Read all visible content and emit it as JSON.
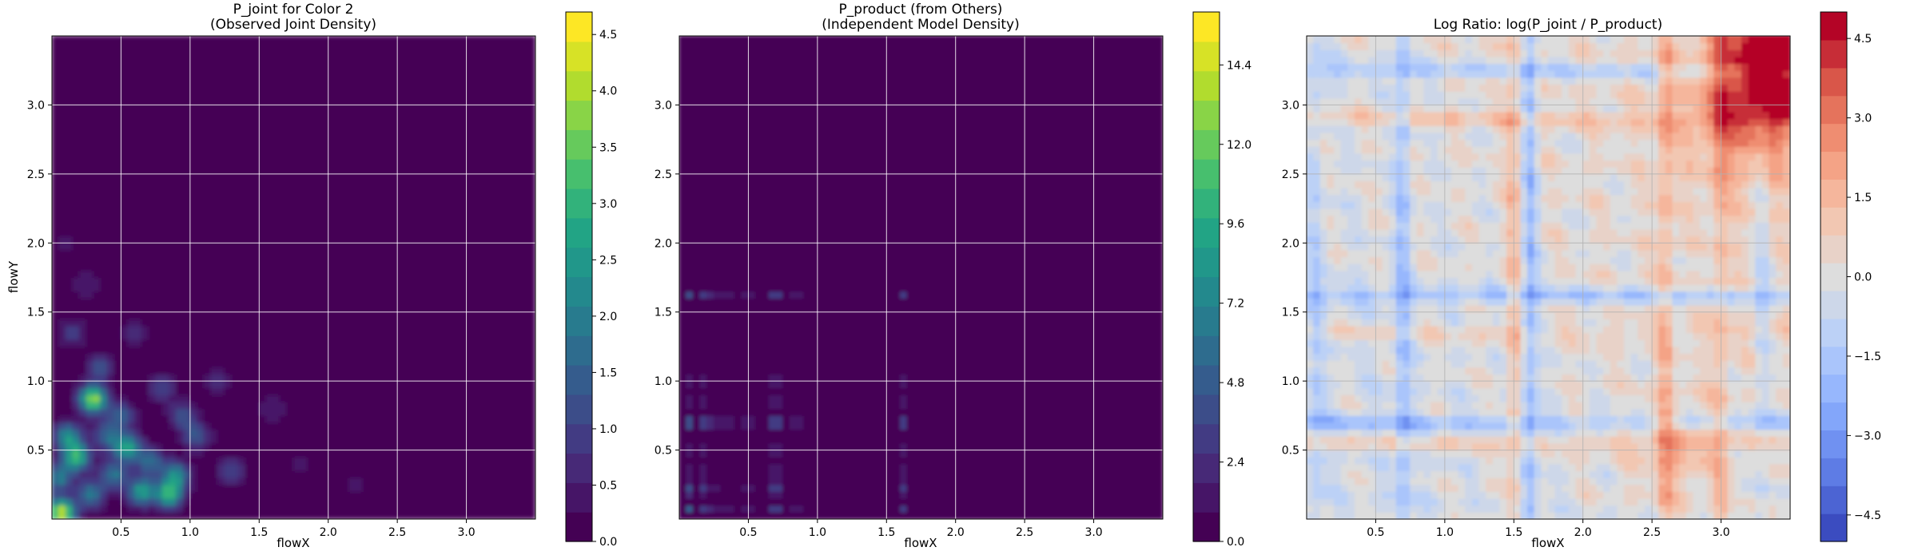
{
  "chart_data": [
    {
      "type": "heatmap",
      "title": "P_joint for Color 2",
      "subtitle": "(Observed Joint Density)",
      "xlabel": "flowX",
      "ylabel": "flowY",
      "xlim": [
        0.0,
        3.5
      ],
      "ylim": [
        0.0,
        3.5
      ],
      "xticks": [
        "0.5",
        "1.0",
        "1.5",
        "2.0",
        "2.5",
        "3.0"
      ],
      "yticks": [
        "0.5",
        "1.0",
        "1.5",
        "2.0",
        "2.5",
        "3.0"
      ],
      "grid": true,
      "colormap": "viridis",
      "colorbar": {
        "range": [
          0.0,
          4.7
        ],
        "ticks": [
          "0.0",
          "0.5",
          "1.0",
          "1.5",
          "2.0",
          "2.5",
          "3.0",
          "3.5",
          "4.0",
          "4.5"
        ]
      },
      "hotspots": [
        {
          "x": 0.07,
          "y": 0.05,
          "value": 4.3
        },
        {
          "x": 0.3,
          "y": 0.87,
          "value": 3.9
        },
        {
          "x": 0.18,
          "y": 0.45,
          "value": 3.0
        },
        {
          "x": 0.12,
          "y": 0.6,
          "value": 2.4
        },
        {
          "x": 0.55,
          "y": 0.52,
          "value": 2.8
        },
        {
          "x": 0.65,
          "y": 0.2,
          "value": 2.6
        },
        {
          "x": 0.85,
          "y": 0.18,
          "value": 3.0
        },
        {
          "x": 0.9,
          "y": 0.32,
          "value": 2.2
        },
        {
          "x": 0.45,
          "y": 0.32,
          "value": 1.9
        },
        {
          "x": 0.72,
          "y": 0.42,
          "value": 1.7
        },
        {
          "x": 0.28,
          "y": 0.18,
          "value": 2.0
        },
        {
          "x": 1.05,
          "y": 0.6,
          "value": 1.4
        },
        {
          "x": 0.35,
          "y": 1.1,
          "value": 1.2
        },
        {
          "x": 0.8,
          "y": 0.95,
          "value": 1.0
        },
        {
          "x": 1.3,
          "y": 0.35,
          "value": 1.0
        },
        {
          "x": 0.15,
          "y": 1.35,
          "value": 0.9
        },
        {
          "x": 0.6,
          "y": 1.35,
          "value": 0.7
        },
        {
          "x": 0.25,
          "y": 1.7,
          "value": 0.5
        },
        {
          "x": 1.6,
          "y": 0.8,
          "value": 0.5
        },
        {
          "x": 1.2,
          "y": 1.0,
          "value": 0.7
        },
        {
          "x": 0.95,
          "y": 0.75,
          "value": 1.3
        },
        {
          "x": 0.5,
          "y": 0.75,
          "value": 1.5
        },
        {
          "x": 0.05,
          "y": 0.3,
          "value": 2.0
        },
        {
          "x": 0.4,
          "y": 0.6,
          "value": 1.6
        },
        {
          "x": 1.8,
          "y": 0.4,
          "value": 0.4
        },
        {
          "x": 2.2,
          "y": 0.25,
          "value": 0.3
        },
        {
          "x": 0.1,
          "y": 2.0,
          "value": 0.3
        }
      ]
    },
    {
      "type": "heatmap",
      "title": "P_product (from Others)",
      "subtitle": "(Independent Model Density)",
      "xlabel": "flowX",
      "ylabel": "",
      "xlim": [
        0.0,
        3.5
      ],
      "ylim": [
        0.0,
        3.5
      ],
      "xticks": [
        "0.5",
        "1.0",
        "1.5",
        "2.0",
        "2.5",
        "3.0"
      ],
      "yticks": [
        "0.5",
        "1.0",
        "1.5",
        "2.0",
        "2.5",
        "3.0"
      ],
      "grid": true,
      "colormap": "viridis",
      "colorbar": {
        "range": [
          0.0,
          16.0
        ],
        "ticks": [
          "0.0",
          "2.4",
          "4.8",
          "7.2",
          "9.6",
          "12.0",
          "14.4"
        ]
      },
      "marginal_peaks": [
        {
          "x": 0.07,
          "wx": 0.6
        },
        {
          "x": 0.18,
          "wx": 0.45
        },
        {
          "x": 0.25,
          "wx": 0.5
        },
        {
          "x": 0.35,
          "wx": 0.3
        },
        {
          "x": 0.5,
          "wx": 0.4
        },
        {
          "x": 0.7,
          "wx": 1.0
        },
        {
          "x": 0.85,
          "wx": 0.3
        },
        {
          "x": 0.95,
          "wx": 0.25
        },
        {
          "x": 1.1,
          "wx": 0.2
        },
        {
          "x": 1.25,
          "wx": 0.2
        },
        {
          "x": 1.4,
          "wx": 0.2
        },
        {
          "x": 1.62,
          "wx": 0.45
        }
      ],
      "row_peaks": [
        {
          "y": 0.07,
          "wy": 0.5
        },
        {
          "y": 0.2,
          "wy": 0.45
        },
        {
          "y": 0.25,
          "wy": 0.4
        },
        {
          "y": 0.35,
          "wy": 0.4
        },
        {
          "y": 0.5,
          "wy": 0.35
        },
        {
          "y": 0.7,
          "wy": 1.0
        },
        {
          "y": 0.85,
          "wy": 0.3
        },
        {
          "y": 1.0,
          "wy": 0.3
        },
        {
          "y": 1.15,
          "wy": 0.2
        },
        {
          "y": 1.35,
          "wy": 0.2
        },
        {
          "y": 1.45,
          "wy": 0.15
        },
        {
          "y": 1.62,
          "wy": 0.45
        },
        {
          "y": 1.8,
          "wy": 0.1
        }
      ],
      "peak": {
        "x": 0.7,
        "y": 0.7,
        "value": 15.9
      }
    },
    {
      "type": "heatmap",
      "title": "Log Ratio: log(P_joint / P_product)",
      "xlabel": "flowX",
      "ylabel": "",
      "xlim": [
        0.0,
        3.5
      ],
      "ylim": [
        0.0,
        3.5
      ],
      "xticks": [
        "0.5",
        "1.0",
        "1.5",
        "2.0",
        "2.5",
        "3.0"
      ],
      "yticks": [
        "0.5",
        "1.0",
        "1.5",
        "2.0",
        "2.5",
        "3.0"
      ],
      "grid": true,
      "colormap": "coolwarm",
      "colorbar": {
        "range": [
          -5.0,
          5.0
        ],
        "ticks": [
          "−4.5",
          "−3.0",
          "−1.5",
          "0.0",
          "1.5",
          "3.0",
          "4.5"
        ]
      },
      "bands": [
        {
          "axis": "x",
          "pos": 0.7,
          "value": -1.6
        },
        {
          "axis": "x",
          "pos": 1.62,
          "value": -1.8
        },
        {
          "axis": "x",
          "pos": 0.07,
          "value": -0.8
        },
        {
          "axis": "x",
          "pos": 3.3,
          "value": -1.0
        },
        {
          "axis": "x",
          "pos": 1.5,
          "value": 1.2
        },
        {
          "axis": "x",
          "pos": 2.6,
          "value": 1.4
        },
        {
          "axis": "x",
          "pos": 3.0,
          "value": 1.0
        },
        {
          "axis": "y",
          "pos": 0.7,
          "value": -1.5
        },
        {
          "axis": "y",
          "pos": 1.62,
          "value": -1.6
        },
        {
          "axis": "y",
          "pos": 3.25,
          "value": -1.4
        },
        {
          "axis": "y",
          "pos": 2.9,
          "value": 1.0
        },
        {
          "axis": "y",
          "pos": 0.55,
          "value": 0.9
        },
        {
          "axis": "y",
          "pos": 1.35,
          "value": 0.6
        }
      ],
      "high_corner": {
        "x": 3.4,
        "y": 3.4,
        "value": 4.8
      }
    }
  ]
}
